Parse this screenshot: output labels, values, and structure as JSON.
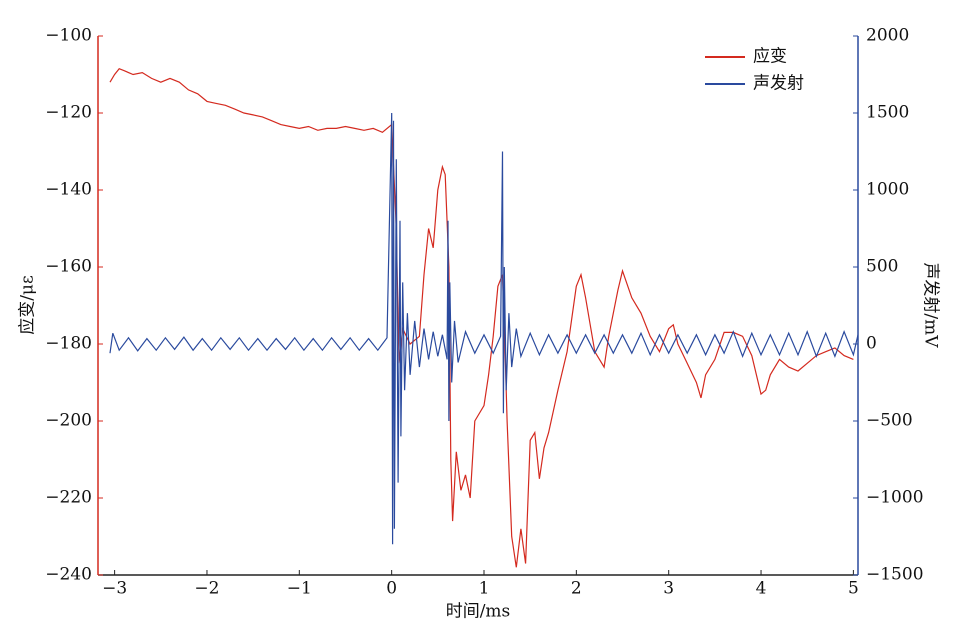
{
  "chart_data": {
    "type": "line",
    "xlabel": "时间/ms",
    "ylabel": "应变/με",
    "y2label": "声发射/mV",
    "xlim": [
      -3.18,
      5.05
    ],
    "ylim": [
      -240,
      -100
    ],
    "y2lim": [
      -1500,
      2000
    ],
    "xticks": [
      {
        "value": -3,
        "label": "−3"
      },
      {
        "value": -2,
        "label": "−2"
      },
      {
        "value": -1,
        "label": "−1"
      },
      0,
      1,
      2,
      3,
      4,
      5
    ],
    "yticks": [
      {
        "value": -100,
        "label": "−100"
      },
      {
        "value": -120,
        "label": "−120"
      },
      {
        "value": -140,
        "label": "−140"
      },
      {
        "value": -160,
        "label": "−160"
      },
      {
        "value": -180,
        "label": "−180"
      },
      {
        "value": -200,
        "label": "−200"
      },
      {
        "value": -220,
        "label": "−220"
      },
      {
        "value": -240,
        "label": "−240"
      }
    ],
    "y2ticks": [
      2000,
      1500,
      1000,
      500,
      0,
      {
        "value": -500,
        "label": "−500"
      },
      {
        "value": -1000,
        "label": "−1000"
      },
      {
        "value": -1500,
        "label": "−1500"
      }
    ],
    "legend": "upper right",
    "series": [
      {
        "name": "应变",
        "color": "#d42a1f",
        "axis": "y",
        "x": [
          -3.05,
          -3.0,
          -2.95,
          -2.9,
          -2.8,
          -2.7,
          -2.6,
          -2.5,
          -2.4,
          -2.3,
          -2.2,
          -2.1,
          -2.0,
          -1.9,
          -1.8,
          -1.7,
          -1.6,
          -1.5,
          -1.4,
          -1.3,
          -1.2,
          -1.1,
          -1.0,
          -0.9,
          -0.8,
          -0.7,
          -0.6,
          -0.5,
          -0.4,
          -0.3,
          -0.2,
          -0.1,
          0.0,
          0.05,
          0.08,
          0.12,
          0.2,
          0.3,
          0.35,
          0.4,
          0.45,
          0.5,
          0.55,
          0.58,
          0.62,
          0.64,
          0.66,
          0.7,
          0.75,
          0.8,
          0.85,
          0.9,
          1.0,
          1.05,
          1.1,
          1.15,
          1.2,
          1.22,
          1.25,
          1.3,
          1.35,
          1.4,
          1.45,
          1.5,
          1.55,
          1.6,
          1.65,
          1.7,
          1.8,
          1.9,
          2.0,
          2.05,
          2.1,
          2.2,
          2.3,
          2.35,
          2.45,
          2.5,
          2.6,
          2.7,
          2.8,
          2.9,
          3.0,
          3.05,
          3.1,
          3.2,
          3.3,
          3.35,
          3.4,
          3.5,
          3.6,
          3.7,
          3.8,
          3.9,
          4.0,
          4.05,
          4.1,
          4.2,
          4.3,
          4.4,
          4.5,
          4.6,
          4.7,
          4.8,
          4.9,
          5.0
        ],
        "values": [
          -112,
          -110,
          -108.5,
          -109,
          -110,
          -109.5,
          -111,
          -112,
          -111,
          -112,
          -114,
          -115,
          -117,
          -117.5,
          -118,
          -119,
          -120,
          -120.5,
          -121,
          -122,
          -123,
          -123.5,
          -124,
          -123.5,
          -124.5,
          -124,
          -124,
          -123.5,
          -124,
          -124.5,
          -124,
          -125,
          -123,
          -150,
          -185,
          -176,
          -180,
          -178,
          -162,
          -150,
          -155,
          -140,
          -134,
          -136,
          -160,
          -210,
          -226,
          -208,
          -218,
          -214,
          -220,
          -200,
          -196,
          -188,
          -178,
          -165,
          -162,
          -175,
          -200,
          -230,
          -238,
          -228,
          -237,
          -205,
          -203,
          -215,
          -207,
          -203,
          -192,
          -182,
          -165,
          -162,
          -168,
          -182,
          -186,
          -178,
          -166,
          -161,
          -168,
          -172,
          -178,
          -182,
          -176,
          -175,
          -180,
          -185,
          -190,
          -194,
          -188,
          -184,
          -177,
          -177,
          -178,
          -183,
          -193,
          -192,
          -188,
          -184,
          -186,
          -187,
          -185,
          -183,
          -182,
          -181,
          -183,
          -184
        ]
      },
      {
        "name": "声发射",
        "color": "#2a4a9e",
        "axis": "y2",
        "x": [
          -3.05,
          -3.02,
          -2.95,
          -2.85,
          -2.75,
          -2.65,
          -2.55,
          -2.45,
          -2.35,
          -2.25,
          -2.15,
          -2.05,
          -1.95,
          -1.85,
          -1.75,
          -1.65,
          -1.55,
          -1.45,
          -1.35,
          -1.25,
          -1.15,
          -1.05,
          -0.95,
          -0.85,
          -0.75,
          -0.65,
          -0.55,
          -0.45,
          -0.35,
          -0.25,
          -0.15,
          -0.05,
          0.0,
          0.01,
          0.02,
          0.03,
          0.05,
          0.07,
          0.09,
          0.1,
          0.12,
          0.14,
          0.17,
          0.2,
          0.25,
          0.3,
          0.35,
          0.4,
          0.45,
          0.5,
          0.55,
          0.6,
          0.61,
          0.62,
          0.63,
          0.65,
          0.68,
          0.72,
          0.8,
          0.9,
          1.0,
          1.1,
          1.18,
          1.2,
          1.21,
          1.22,
          1.24,
          1.27,
          1.3,
          1.35,
          1.4,
          1.5,
          1.6,
          1.7,
          1.8,
          1.9,
          2.0,
          2.1,
          2.2,
          2.3,
          2.4,
          2.5,
          2.6,
          2.7,
          2.8,
          2.9,
          3.0,
          3.1,
          3.2,
          3.3,
          3.4,
          3.5,
          3.6,
          3.7,
          3.8,
          3.9,
          4.0,
          4.1,
          4.2,
          4.3,
          4.4,
          4.5,
          4.6,
          4.7,
          4.8,
          4.9,
          5.0,
          5.05
        ],
        "values": [
          -60,
          70,
          -40,
          40,
          -45,
          35,
          -40,
          40,
          -35,
          45,
          -40,
          35,
          -40,
          40,
          -35,
          40,
          -40,
          35,
          -40,
          35,
          -35,
          40,
          -40,
          35,
          -40,
          40,
          -35,
          40,
          -40,
          35,
          -40,
          40,
          1500,
          -1300,
          1450,
          -1200,
          1200,
          -900,
          800,
          -600,
          400,
          -300,
          200,
          -200,
          150,
          -150,
          100,
          -100,
          80,
          -80,
          60,
          -100,
          800,
          -500,
          400,
          -250,
          150,
          -120,
          80,
          -60,
          60,
          -60,
          50,
          1250,
          -450,
          500,
          -300,
          200,
          -150,
          100,
          -80,
          70,
          -70,
          60,
          -60,
          60,
          -60,
          60,
          -60,
          60,
          -60,
          60,
          -60,
          70,
          -70,
          60,
          -60,
          60,
          -60,
          60,
          -70,
          60,
          -60,
          80,
          -80,
          70,
          -70,
          60,
          -70,
          70,
          -70,
          80,
          -80,
          70,
          -80,
          80,
          -70,
          60
        ]
      }
    ]
  }
}
